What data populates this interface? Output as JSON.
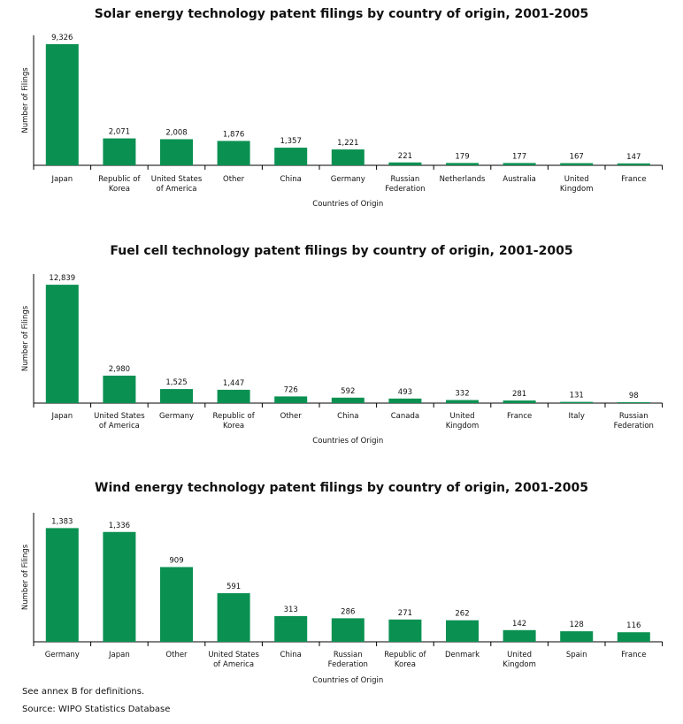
{
  "chart_data": [
    {
      "type": "bar",
      "title": "Solar energy technology patent filings by country of origin, 2001-2005",
      "xlabel": "Countries of Origin",
      "ylabel": "Number of Filings",
      "ylim": [
        0,
        10000
      ],
      "grid": false,
      "color": "#0a9152",
      "categories": [
        "Japan",
        "Republic of|Korea",
        "United States|of America",
        "Other",
        "China",
        "Germany",
        "Russian|Federation",
        "Netherlands",
        "Australia",
        "United|Kingdom",
        "France"
      ],
      "values": [
        9326,
        2071,
        2008,
        1876,
        1357,
        1221,
        221,
        179,
        177,
        167,
        147
      ],
      "labels": [
        "9,326",
        "2,071",
        "2,008",
        "1,876",
        "1,357",
        "1,221",
        "221",
        "179",
        "177",
        "167",
        "147"
      ]
    },
    {
      "type": "bar",
      "title": "Fuel cell technology patent filings by country of origin, 2001-2005",
      "xlabel": "Countries of Origin",
      "ylabel": "Number of Filings",
      "ylim": [
        0,
        14000
      ],
      "grid": false,
      "color": "#0a9152",
      "categories": [
        "Japan",
        "United States|of America",
        "Germany",
        "Republic of|Korea",
        "Other",
        "China",
        "Canada",
        "United|Kingdom",
        "France",
        "Italy",
        "Russian|Federation"
      ],
      "values": [
        12839,
        2980,
        1525,
        1447,
        726,
        592,
        493,
        332,
        281,
        131,
        98
      ],
      "labels": [
        "12,839",
        "2,980",
        "1,525",
        "1,447",
        "726",
        "592",
        "493",
        "332",
        "281",
        "131",
        "98"
      ]
    },
    {
      "type": "bar",
      "title": "Wind energy technology patent filings by country of origin, 2001-2005",
      "xlabel": "Countries of Origin",
      "ylabel": "Number of Filings",
      "ylim": [
        0,
        1570
      ],
      "grid": false,
      "color": "#0a9152",
      "categories": [
        "Germany",
        "Japan",
        "Other",
        "United States|of America",
        "China",
        "Russian|Federation",
        "Republic of|Korea",
        "Denmark",
        "United|Kingdom",
        "Spain",
        "France"
      ],
      "values": [
        1383,
        1336,
        909,
        591,
        313,
        286,
        271,
        262,
        142,
        128,
        116
      ],
      "labels": [
        "1,383",
        "1,336",
        "909",
        "591",
        "313",
        "286",
        "271",
        "262",
        "142",
        "128",
        "116"
      ]
    }
  ],
  "footnotes": {
    "note": "See annex B for definitions.",
    "source": "Source: WIPO Statistics Database"
  }
}
